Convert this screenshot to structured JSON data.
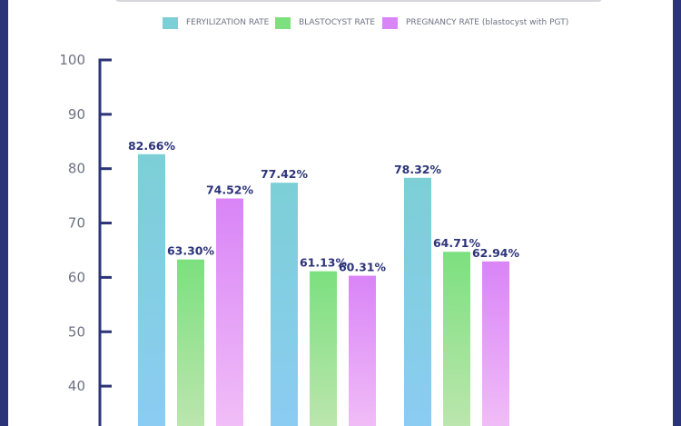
{
  "legend": [
    {
      "label": "FERYILIZATION RATE",
      "color": "#7ccfd6"
    },
    {
      "label": "BLASTOCYST RATE",
      "color": "#7ce07f"
    },
    {
      "label": "PREGNANCY RATE (blastocyst with PGT)",
      "color": "#d984f7"
    }
  ],
  "chart_data": {
    "type": "bar",
    "title": "",
    "xlabel": "",
    "ylabel": "",
    "ylim": [
      30,
      100
    ],
    "yticks": [
      100,
      90,
      80,
      70,
      60,
      50,
      40
    ],
    "grid": false,
    "legend_position": "top",
    "categories": [
      "",
      "",
      ""
    ],
    "series": [
      {
        "name": "FERYILIZATION RATE",
        "values": [
          82.66,
          77.42,
          78.32
        ],
        "labels": [
          "82.66%",
          "77.42%",
          "78.32%"
        ]
      },
      {
        "name": "BLASTOCYST RATE",
        "values": [
          63.3,
          61.13,
          64.71
        ],
        "labels": [
          "63.30%",
          "61.13%",
          "64.71%"
        ]
      },
      {
        "name": "PREGNANCY RATE (blastocyst with PGT)",
        "values": [
          74.52,
          60.31,
          62.94
        ],
        "labels": [
          "74.52%",
          "60.31%",
          "62.94%"
        ]
      }
    ],
    "colors": {
      "series": [
        {
          "top": "#7ccfd6",
          "bottom": "#8cccf4"
        },
        {
          "top": "#7ce07f",
          "bottom": "#bfe6b0"
        },
        {
          "top": "#d984f7",
          "bottom": "#f2c0f7"
        }
      ],
      "axis": "#2c3479",
      "tick_label": "#6e7183",
      "data_label": "#2c3479"
    }
  }
}
